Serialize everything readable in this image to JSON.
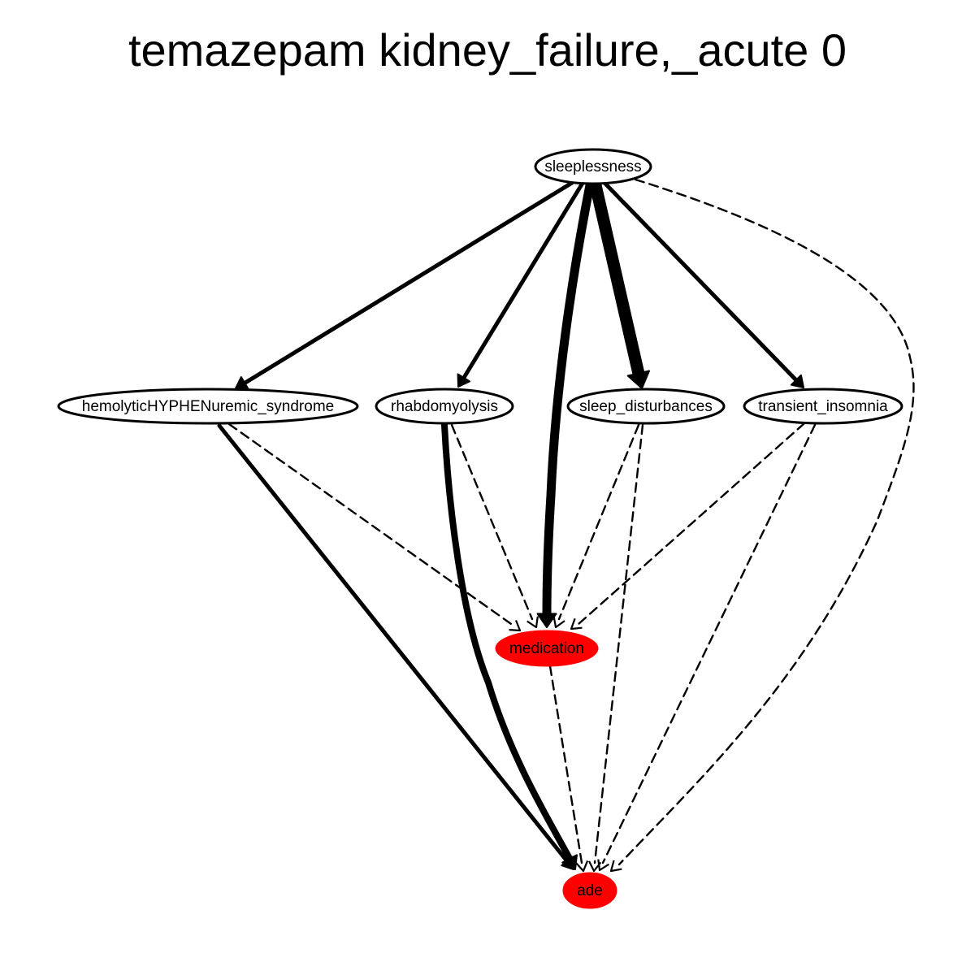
{
  "title": "temazepam kidney_failure,_acute 0",
  "colors": {
    "highlight_node_fill": "#ff0000",
    "default_node_fill": "#ffffff",
    "stroke": "#000000"
  },
  "nodes": [
    {
      "id": "sleeplessness",
      "label": "sleeplessness",
      "highlighted": false
    },
    {
      "id": "hus",
      "label": "hemolyticHYPHENuremic_syndrome",
      "highlighted": false
    },
    {
      "id": "rhabdo",
      "label": "rhabdomyolysis",
      "highlighted": false
    },
    {
      "id": "sleepdist",
      "label": "sleep_disturbances",
      "highlighted": false
    },
    {
      "id": "transient",
      "label": "transient_insomnia",
      "highlighted": false
    },
    {
      "id": "medication",
      "label": "medication",
      "highlighted": true
    },
    {
      "id": "ade",
      "label": "ade",
      "highlighted": true
    }
  ],
  "edges": [
    {
      "from": "sleeplessness",
      "to": "hus",
      "style": "solid",
      "weight": 2
    },
    {
      "from": "sleeplessness",
      "to": "rhabdo",
      "style": "solid",
      "weight": 2
    },
    {
      "from": "sleeplessness",
      "to": "medication",
      "style": "solid",
      "weight": 4
    },
    {
      "from": "sleeplessness",
      "to": "sleepdist",
      "style": "solid",
      "weight": 6
    },
    {
      "from": "sleeplessness",
      "to": "transient",
      "style": "solid",
      "weight": 2
    },
    {
      "from": "sleeplessness",
      "to": "ade",
      "style": "dashed",
      "weight": 1
    },
    {
      "from": "hus",
      "to": "medication",
      "style": "dashed",
      "weight": 1
    },
    {
      "from": "hus",
      "to": "ade",
      "style": "solid",
      "weight": 2
    },
    {
      "from": "rhabdo",
      "to": "medication",
      "style": "dashed",
      "weight": 1
    },
    {
      "from": "rhabdo",
      "to": "ade",
      "style": "solid",
      "weight": 3
    },
    {
      "from": "sleepdist",
      "to": "medication",
      "style": "dashed",
      "weight": 1
    },
    {
      "from": "sleepdist",
      "to": "ade",
      "style": "dashed",
      "weight": 1
    },
    {
      "from": "transient",
      "to": "medication",
      "style": "dashed",
      "weight": 1
    },
    {
      "from": "transient",
      "to": "ade",
      "style": "dashed",
      "weight": 1
    },
    {
      "from": "medication",
      "to": "ade",
      "style": "dashed",
      "weight": 1
    }
  ]
}
